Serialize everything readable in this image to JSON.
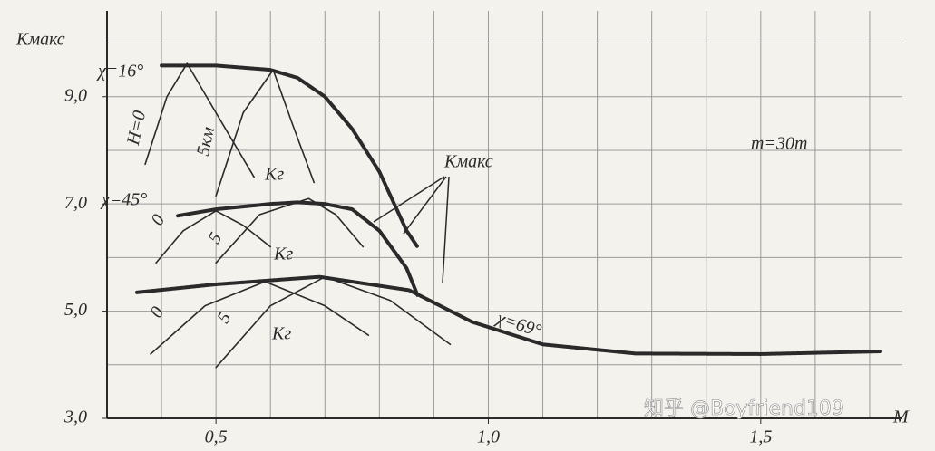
{
  "chart_data": {
    "type": "line",
    "xlabel": "M",
    "ylabel": "Kмакс",
    "xlim": [
      0.3,
      1.76
    ],
    "ylim": [
      3,
      10.6
    ],
    "xticks": [
      {
        "value": 0.5,
        "label": "0,5"
      },
      {
        "value": 1.0,
        "label": "1,0"
      },
      {
        "value": 1.5,
        "label": "1,5"
      }
    ],
    "yticks": [
      {
        "value": 3,
        "label": "3,0"
      },
      {
        "value": 5,
        "label": "5,0"
      },
      {
        "value": 7,
        "label": "7,0"
      },
      {
        "value": 9,
        "label": "9,0"
      }
    ],
    "grid": true,
    "xgrid": [
      0.4,
      0.5,
      0.6,
      0.7,
      0.8,
      0.9,
      1.0,
      1.1,
      1.2,
      1.3,
      1.4,
      1.5,
      1.6,
      1.7
    ],
    "ygrid": [
      4,
      5,
      6,
      7,
      8,
      9,
      10
    ],
    "series": [
      {
        "name": "χ=16°",
        "color": "#2a2a2a",
        "style": "thick",
        "x": [
          0.4,
          0.5,
          0.6,
          0.65,
          0.7,
          0.75,
          0.8,
          0.85,
          0.87
        ],
        "values": [
          9.58,
          9.58,
          9.5,
          9.35,
          9.0,
          8.4,
          7.6,
          6.5,
          6.2
        ]
      },
      {
        "name": "χ=45°",
        "color": "#2a2a2a",
        "style": "thick",
        "x": [
          0.43,
          0.5,
          0.6,
          0.65,
          0.7,
          0.75,
          0.8,
          0.85,
          0.87
        ],
        "values": [
          6.78,
          6.9,
          7.0,
          7.03,
          7.0,
          6.9,
          6.5,
          5.8,
          5.3
        ]
      },
      {
        "name": "χ=69°",
        "color": "#2a2a2a",
        "style": "thick",
        "x": [
          0.355,
          0.5,
          0.69,
          0.855,
          0.97,
          1.1,
          1.27,
          1.5,
          1.72
        ],
        "values": [
          5.35,
          5.5,
          5.64,
          5.39,
          4.8,
          4.38,
          4.21,
          4.2,
          4.25
        ]
      },
      {
        "name": "H=0",
        "color": "#2a2a2a",
        "style": "thin",
        "x": [
          0.37,
          0.41,
          0.447,
          0.5,
          0.57
        ],
        "values": [
          7.74,
          9.0,
          9.62,
          8.7,
          7.5
        ]
      },
      {
        "name": "5км",
        "color": "#2a2a2a",
        "style": "thin",
        "x": [
          0.5,
          0.55,
          0.605,
          0.64,
          0.68
        ],
        "values": [
          7.15,
          8.7,
          9.5,
          8.5,
          7.4
        ]
      },
      {
        "name": "0",
        "color": "#2a2a2a",
        "style": "thin",
        "x": [
          0.39,
          0.44,
          0.5,
          0.55,
          0.6
        ],
        "values": [
          5.9,
          6.5,
          6.87,
          6.6,
          6.2
        ]
      },
      {
        "name": "5",
        "color": "#2a2a2a",
        "style": "thin",
        "x": [
          0.5,
          0.58,
          0.67,
          0.72,
          0.77
        ],
        "values": [
          5.9,
          6.8,
          7.1,
          6.8,
          6.2
        ]
      },
      {
        "name": "0",
        "color": "#2a2a2a",
        "style": "thin",
        "x": [
          0.38,
          0.48,
          0.59,
          0.7,
          0.78
        ],
        "values": [
          4.2,
          5.1,
          5.55,
          5.1,
          4.55
        ]
      },
      {
        "name": "5",
        "color": "#2a2a2a",
        "style": "thin",
        "x": [
          0.5,
          0.6,
          0.7,
          0.82,
          0.93
        ],
        "values": [
          3.95,
          5.1,
          5.64,
          5.2,
          4.38
        ]
      }
    ],
    "annotations": [
      "Kг",
      "Kг",
      "Kг",
      "Kмакс",
      "m=30т",
      "知乎 @Boyfriend109"
    ]
  }
}
